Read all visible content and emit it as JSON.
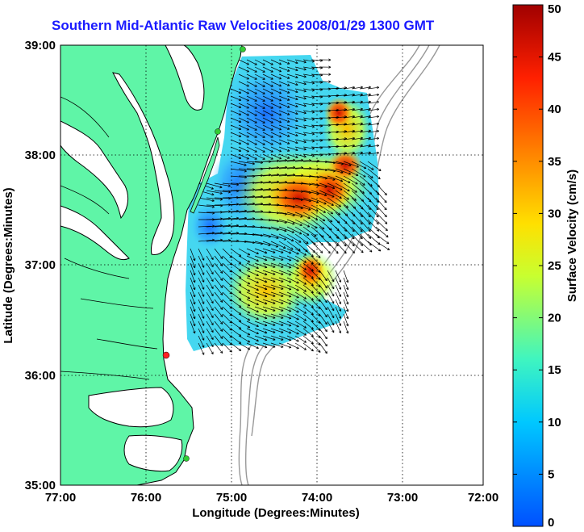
{
  "title": "Southern Mid-Atlantic Raw Velocities 2008/01/29 1300 GMT",
  "map": {
    "xlabel": "Longitude (Degrees:Minutes)",
    "ylabel": "Latitude (Degrees:Minutes)",
    "x_ticks": [
      "77:00",
      "76:00",
      "75:00",
      "74:00",
      "73:00",
      "72:00"
    ],
    "y_ticks": [
      "39:00",
      "38:00",
      "37:00",
      "36:00",
      "35:00"
    ],
    "lon_range": [
      -77,
      -72
    ],
    "lat_range": [
      35,
      39
    ],
    "colors": {
      "land": "#5ff5a7",
      "water": "#ffffff",
      "coast": "#000000",
      "bathymetry": "#999999",
      "station": "#33cc33",
      "station_highlight": "#ff2222"
    }
  },
  "colorbar": {
    "label": "Surface Velocity (cm/s)",
    "min": 0,
    "max": 50,
    "ticks": [
      "0",
      "5",
      "10",
      "15",
      "20",
      "25",
      "30",
      "35",
      "40",
      "45",
      "50"
    ],
    "colormap": [
      "#0050ff",
      "#00c8ff",
      "#3ff5c0",
      "#c8ff30",
      "#ffe000",
      "#ff8000",
      "#ff2000",
      "#a00000"
    ]
  }
}
